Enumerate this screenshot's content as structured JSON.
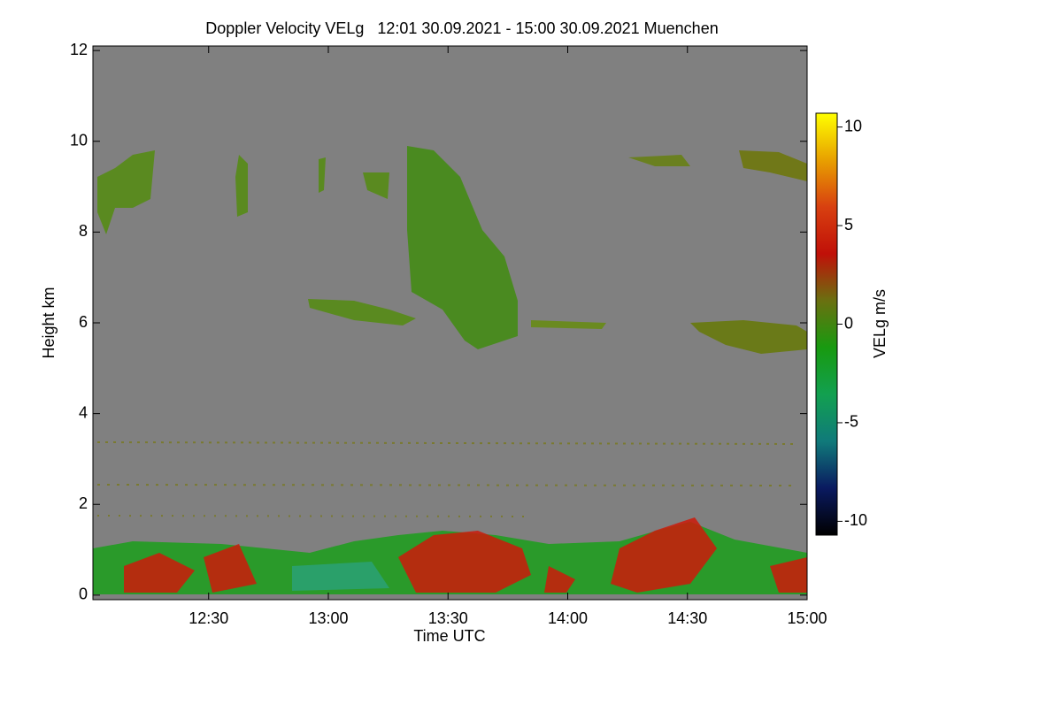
{
  "chart_data": {
    "type": "heatmap",
    "title": "Doppler Velocity VELg   12:01 30.09.2021 - 15:00 30.09.2021 Muenchen",
    "x_label": "Time UTC",
    "y_label": "Height km",
    "colorbar_label": "VELg m/s",
    "xlim": [
      12.0167,
      15
    ],
    "xticks": [
      {
        "value": 12.5,
        "label": "12:30"
      },
      {
        "value": 13,
        "label": "13:00"
      },
      {
        "value": 13.5,
        "label": "13:30"
      },
      {
        "value": 14,
        "label": "14:00"
      },
      {
        "value": 14.5,
        "label": "14:30"
      },
      {
        "value": 15,
        "label": "15:00"
      }
    ],
    "ylim": [
      -0.1,
      12.1
    ],
    "yticks": [
      0,
      2,
      4,
      6,
      8,
      10,
      12
    ],
    "clim": [
      -10.7,
      10.7
    ],
    "cticks": [
      -10,
      -5,
      0,
      5,
      10
    ],
    "background_color": "#808080",
    "colormap": [
      "#000000",
      "#0a1a60",
      "#107a7a",
      "#12a050",
      "#189a10",
      "#6a7010",
      "#c01008",
      "#d84010",
      "#e8a000",
      "#ffff00"
    ]
  }
}
